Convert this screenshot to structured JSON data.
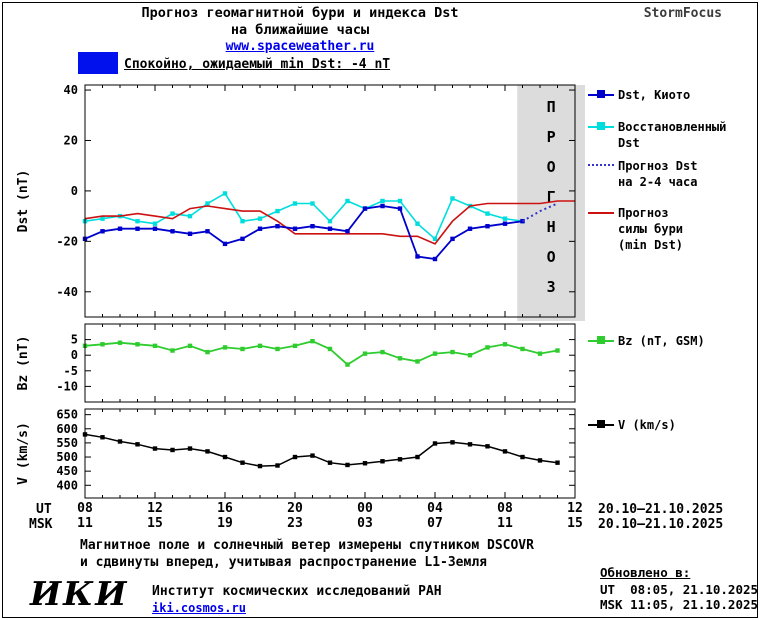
{
  "header": {
    "title_line1": "Прогноз геомагнитной бури и индекса Dst",
    "title_line2": "на ближайшие часы",
    "site_link": "www.spaceweather.ru",
    "brand": "StormFocus"
  },
  "status": {
    "label": "Спокойно, ожидаемый min Dst: -4 nT",
    "box_color": "#0011EE"
  },
  "legend": {
    "dst_kyoto": "Dst, Киото",
    "restored": "Восстановленный\nDst",
    "forecast": "Прогноз Dst\nна 2-4 часа",
    "storm": "Прогноз\nсилы бури\n(min Dst)",
    "bz": "Bz (nT, GSM)",
    "v": "V (km/s)"
  },
  "axis": {
    "ut_label": "UT",
    "msk_label": "MSK",
    "date_range_ut": "20.10–21.10.2025",
    "date_range_msk": "20.10–21.10.2025"
  },
  "footer": {
    "note_line1": "Магнитное поле и солнечный ветер измерены спутником DSCOVR",
    "note_line2": "и сдвинуты вперед, учитывая распространение L1-Земля",
    "logo": "ИКИ",
    "institute": "Институт космических исследований РАН",
    "site_link": "iki.cosmos.ru",
    "updated_title": "Обновлено в:",
    "updated_ut": "UT  08:05, 21.10.2025",
    "updated_msk": "MSK 11:05, 21.10.2025"
  },
  "chart_data": {
    "type": "line",
    "title": "Прогноз геомагнитной бури и индекса Dst на ближайшие часы",
    "x_unit": "UT hours, 20.10–21.10.2025 (hours >24 belong to 21.10)",
    "x_range": [
      8,
      36
    ],
    "grid": false,
    "legend_position": "right",
    "xticks": {
      "hours": [
        8,
        12,
        16,
        20,
        24,
        28,
        32,
        36
      ],
      "ut_labels": [
        "08",
        "12",
        "16",
        "20",
        "00",
        "04",
        "08",
        "12"
      ],
      "msk_labels": [
        "11",
        "15",
        "19",
        "23",
        "03",
        "07",
        "11",
        "15"
      ]
    },
    "panels": [
      {
        "id": "dst",
        "ylabel": "Dst (nT)",
        "ylim": [
          -50,
          42
        ],
        "yticks": [
          40,
          20,
          0,
          -20,
          -40
        ],
        "forecast_band": {
          "start_hour": 32.7,
          "label": "ПРОГНОЗ",
          "color": "#DCDCDC",
          "text_color": "#9A9A9A"
        },
        "series": [
          {
            "id": "dst_kyoto",
            "name": "Dst, Киото",
            "color": "#0000CC",
            "marker": true,
            "z": 3,
            "width": 1.8,
            "x": [
              8,
              9,
              10,
              11,
              12,
              13,
              14,
              15,
              16,
              17,
              18,
              19,
              20,
              21,
              22,
              23,
              24,
              25,
              26,
              27,
              28,
              29,
              30,
              31,
              32,
              33
            ],
            "y": [
              -19,
              -16,
              -15,
              -15,
              -15,
              -16,
              -17,
              -16,
              -21,
              -19,
              -15,
              -14,
              -15,
              -14,
              -15,
              -16,
              -7,
              -6,
              -7,
              -26,
              -27,
              -19,
              -15,
              -14,
              -13,
              -12
            ]
          },
          {
            "id": "restored_dst",
            "name": "Восстановленный Dst",
            "color": "#00DDDD",
            "marker": true,
            "z": 1,
            "width": 1.6,
            "x": [
              8,
              9,
              10,
              11,
              12,
              13,
              14,
              15,
              16,
              17,
              18,
              19,
              20,
              21,
              22,
              23,
              24,
              25,
              26,
              27,
              28,
              29,
              30,
              31,
              32,
              33
            ],
            "y": [
              -12,
              -11,
              -10,
              -12,
              -13,
              -9,
              -10,
              -5,
              -1,
              -12,
              -11,
              -8,
              -5,
              -5,
              -12,
              -4,
              -7,
              -4,
              -4,
              -13,
              -19,
              -3,
              -6,
              -9,
              -11,
              -12
            ]
          },
          {
            "id": "forecast_dst",
            "name": "Прогноз Dst на 2-4 часа",
            "color": "#3333CC",
            "dotted": true,
            "z": 4,
            "x": [
              33,
              34,
              35
            ],
            "y": [
              -12,
              -8,
              -5
            ]
          },
          {
            "id": "storm_forecast",
            "name": "Прогноз силы бури (min Dst)",
            "color": "#CC1111",
            "z": 2,
            "width": 1.6,
            "x": [
              8,
              9,
              10,
              11,
              12,
              13,
              14,
              15,
              16,
              17,
              18,
              19,
              20,
              21,
              22,
              23,
              24,
              25,
              26,
              27,
              28,
              29,
              30,
              31,
              32,
              33,
              34,
              35,
              36
            ],
            "y": [
              -11,
              -10,
              -10,
              -9,
              -10,
              -11,
              -7,
              -6,
              -7,
              -8,
              -8,
              -12,
              -17,
              -17,
              -17,
              -17,
              -17,
              -17,
              -18,
              -18,
              -21,
              -12,
              -6,
              -5,
              -5,
              -5,
              -5,
              -4,
              -4
            ]
          }
        ]
      },
      {
        "id": "bz",
        "ylabel": "Bz (nT)",
        "ylim": [
          -15,
          10
        ],
        "yticks": [
          5,
          0,
          -5,
          -10
        ],
        "series": [
          {
            "id": "bz",
            "name": "Bz (nT, GSM)",
            "color": "#2ECC2E",
            "marker": true,
            "z": 1,
            "width": 1.8,
            "x": [
              8,
              9,
              10,
              11,
              12,
              13,
              14,
              15,
              16,
              17,
              18,
              19,
              20,
              21,
              22,
              23,
              24,
              25,
              26,
              27,
              28,
              29,
              30,
              31,
              32,
              33,
              34,
              35
            ],
            "y": [
              3,
              3.5,
              4,
              3.5,
              3,
              1.5,
              3,
              1,
              2.5,
              2,
              3,
              2,
              3,
              4.5,
              2,
              -3,
              0.5,
              1,
              -1,
              -2,
              0.5,
              1,
              0,
              2.5,
              3.5,
              2,
              0.5,
              1.5
            ]
          }
        ]
      },
      {
        "id": "v",
        "ylabel": "V (km/s)",
        "ylim": [
          355,
          670
        ],
        "yticks": [
          650,
          600,
          550,
          500,
          450,
          400
        ],
        "series": [
          {
            "id": "v",
            "name": "V (km/s)",
            "color": "#000000",
            "marker": true,
            "z": 1,
            "width": 1.5,
            "x": [
              8,
              9,
              10,
              11,
              12,
              13,
              14,
              15,
              16,
              17,
              18,
              19,
              20,
              21,
              22,
              23,
              24,
              25,
              26,
              27,
              28,
              29,
              30,
              31,
              32,
              33,
              34,
              35
            ],
            "y": [
              580,
              570,
              555,
              545,
              530,
              525,
              530,
              520,
              500,
              480,
              468,
              470,
              500,
              505,
              480,
              472,
              478,
              485,
              492,
              500,
              548,
              552,
              545,
              538,
              520,
              500,
              488,
              480
            ]
          }
        ]
      }
    ]
  }
}
